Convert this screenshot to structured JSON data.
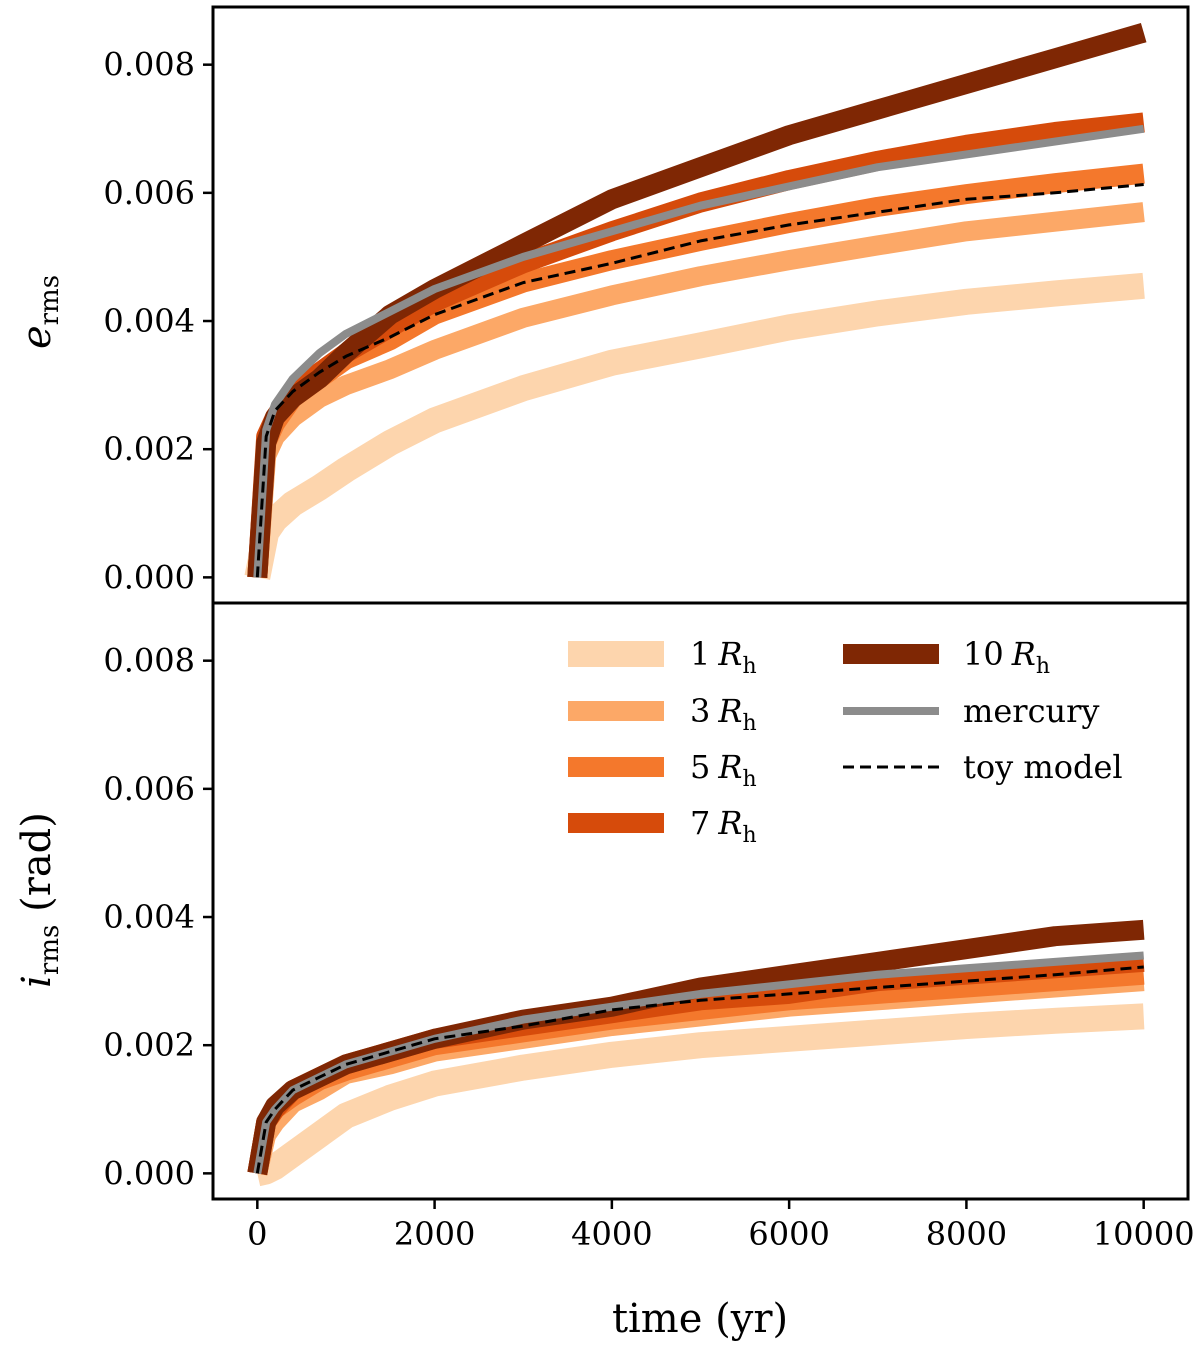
{
  "chart_data": [
    {
      "type": "line",
      "panel": "top",
      "ylabel": "e",
      "ylabel_sub": "rms",
      "ylabel_suffix": "",
      "xlim": [
        -500,
        10500
      ],
      "ylim": [
        -0.0004,
        0.0089
      ],
      "yticks": [
        0,
        0.002,
        0.004,
        0.006,
        0.008
      ],
      "ytick_labels": [
        "0.000",
        "0.002",
        "0.004",
        "0.006",
        "0.008"
      ],
      "x": [
        0,
        100,
        200,
        400,
        700,
        1000,
        1500,
        2000,
        3000,
        4000,
        5000,
        6000,
        7000,
        8000,
        9000,
        10000
      ],
      "series": [
        {
          "name": "1 R_h",
          "values": [
            0,
            0.0007,
            0.0009,
            0.00115,
            0.0014,
            0.00168,
            0.0021,
            0.00245,
            0.00295,
            0.00335,
            0.00362,
            0.0039,
            0.00412,
            0.0043,
            0.00443,
            0.00455
          ]
        },
        {
          "name": "3 R_h",
          "values": [
            0,
            0.0019,
            0.0022,
            0.0025,
            0.0028,
            0.003,
            0.00325,
            0.00355,
            0.00405,
            0.0044,
            0.0047,
            0.00495,
            0.00518,
            0.0054,
            0.00555,
            0.0057
          ]
        },
        {
          "name": "5 R_h",
          "values": [
            0,
            0.0021,
            0.0024,
            0.0028,
            0.0031,
            0.0034,
            0.0037,
            0.0041,
            0.0046,
            0.00495,
            0.00525,
            0.00553,
            0.00578,
            0.00598,
            0.00615,
            0.0063
          ]
        },
        {
          "name": "7 R_h",
          "values": [
            0,
            0.0022,
            0.0025,
            0.0029,
            0.0032,
            0.0035,
            0.0039,
            0.0043,
            0.0049,
            0.0054,
            0.00585,
            0.0062,
            0.0065,
            0.00675,
            0.00695,
            0.0071
          ]
        },
        {
          "name": "10 R_h",
          "values": [
            0,
            0.0021,
            0.0025,
            0.0028,
            0.0031,
            0.0035,
            0.0041,
            0.0045,
            0.0052,
            0.0059,
            0.0064,
            0.0069,
            0.0073,
            0.0077,
            0.0081,
            0.0085
          ]
        },
        {
          "name": "mercury",
          "values": [
            0,
            0.0023,
            0.0027,
            0.0031,
            0.0035,
            0.0038,
            0.00415,
            0.0045,
            0.005,
            0.0054,
            0.0058,
            0.0061,
            0.0064,
            0.0066,
            0.0068,
            0.007
          ]
        },
        {
          "name": "toy model",
          "values": [
            0,
            0.0022,
            0.0026,
            0.0029,
            0.0032,
            0.00345,
            0.00375,
            0.0041,
            0.0046,
            0.0049,
            0.00525,
            0.0055,
            0.0057,
            0.0059,
            0.006,
            0.00613
          ]
        }
      ]
    },
    {
      "type": "line",
      "panel": "bottom",
      "ylabel": "i",
      "ylabel_sub": "rms",
      "ylabel_suffix": "(rad)",
      "xlabel": "time (yr)",
      "xlim": [
        -500,
        10500
      ],
      "ylim": [
        -0.0004,
        0.0089
      ],
      "yticks": [
        0,
        0.002,
        0.004,
        0.006,
        0.008
      ],
      "ytick_labels": [
        "0.000",
        "0.002",
        "0.004",
        "0.006",
        "0.008"
      ],
      "xticks": [
        0,
        2000,
        4000,
        6000,
        8000,
        10000
      ],
      "xtick_labels": [
        "0",
        "2000",
        "4000",
        "6000",
        "8000",
        "10000"
      ],
      "x": [
        0,
        100,
        200,
        400,
        700,
        1000,
        1500,
        2000,
        3000,
        4000,
        5000,
        6000,
        7000,
        8000,
        9000,
        10000
      ],
      "series": [
        {
          "name": "1 R_h",
          "values": [
            0,
            3e-05,
            0.0001,
            0.0003,
            0.0006,
            0.0009,
            0.00118,
            0.0014,
            0.00165,
            0.00185,
            0.002,
            0.0021,
            0.0022,
            0.0023,
            0.00238,
            0.00245
          ]
        },
        {
          "name": "3 R_h",
          "values": [
            0,
            0.0006,
            0.0008,
            0.0011,
            0.0013,
            0.00155,
            0.0017,
            0.0019,
            0.0021,
            0.0023,
            0.00245,
            0.0026,
            0.0027,
            0.0028,
            0.0029,
            0.003
          ]
        },
        {
          "name": "5 R_h",
          "values": [
            0,
            0.0008,
            0.001,
            0.0012,
            0.00145,
            0.0016,
            0.0018,
            0.002,
            0.0022,
            0.0024,
            0.00255,
            0.0027,
            0.0028,
            0.0029,
            0.003,
            0.0031
          ]
        },
        {
          "name": "7 R_h",
          "values": [
            0,
            0.0008,
            0.001,
            0.0013,
            0.0015,
            0.0017,
            0.0019,
            0.0021,
            0.0023,
            0.0025,
            0.0027,
            0.0028,
            0.003,
            0.0031,
            0.0032,
            0.0033
          ]
        },
        {
          "name": "10 R_h",
          "values": [
            0,
            0.0008,
            0.00105,
            0.0013,
            0.0015,
            0.0017,
            0.0019,
            0.0021,
            0.0024,
            0.0026,
            0.0029,
            0.0031,
            0.0033,
            0.0035,
            0.0037,
            0.0038
          ]
        },
        {
          "name": "mercury",
          "values": [
            0,
            0.0008,
            0.001,
            0.0013,
            0.0015,
            0.0017,
            0.0019,
            0.0021,
            0.0024,
            0.0026,
            0.0028,
            0.00295,
            0.0031,
            0.0032,
            0.0033,
            0.0034
          ]
        },
        {
          "name": "toy model",
          "values": [
            0,
            0.0008,
            0.001,
            0.0013,
            0.0015,
            0.0017,
            0.0019,
            0.0021,
            0.0023,
            0.00255,
            0.0027,
            0.0028,
            0.0029,
            0.003,
            0.0031,
            0.00322
          ]
        }
      ]
    }
  ],
  "legend": {
    "placement": "top-right of bottom panel",
    "columns": 2,
    "items": [
      {
        "label": "1",
        "italic": "R",
        "sub": "h",
        "color": "#fdd5ad",
        "style": "solid-thick"
      },
      {
        "label": "3",
        "italic": "R",
        "sub": "h",
        "color": "#fca867",
        "style": "solid-thick"
      },
      {
        "label": "5",
        "italic": "R",
        "sub": "h",
        "color": "#f4782c",
        "style": "solid-thick"
      },
      {
        "label": "7",
        "italic": "R",
        "sub": "h",
        "color": "#d64b0b",
        "style": "solid-thick"
      },
      {
        "label": "10",
        "italic": "R",
        "sub": "h",
        "color": "#7f2704",
        "style": "solid-thick"
      },
      {
        "label": "mercury",
        "italic": "",
        "sub": "",
        "color": "#8c8c8c",
        "style": "solid"
      },
      {
        "label": "toy model",
        "italic": "",
        "sub": "",
        "color": "#000000",
        "style": "dashed"
      }
    ]
  }
}
